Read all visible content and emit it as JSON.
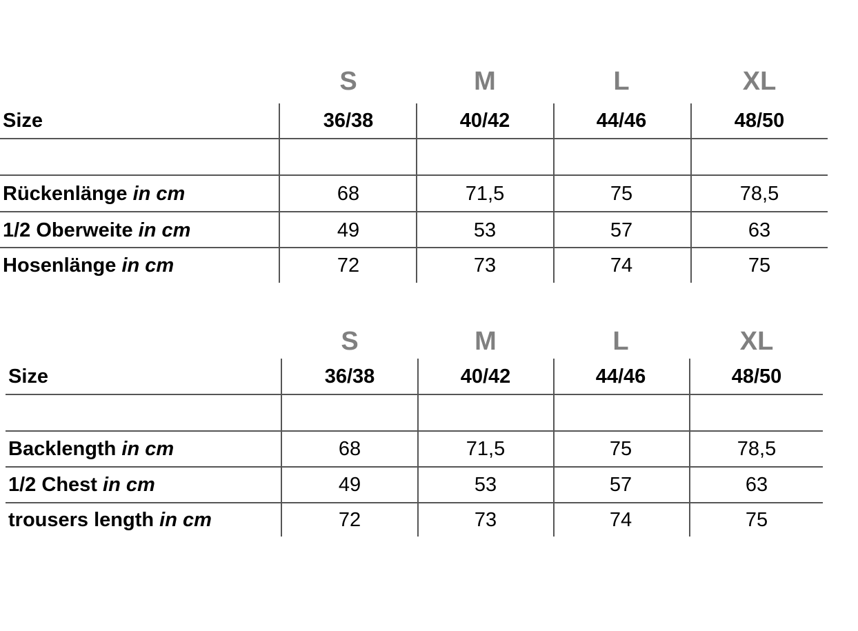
{
  "tables": [
    {
      "size_letters": [
        "S",
        "M",
        "L",
        "XL"
      ],
      "header_label": "Size",
      "sizes": [
        "36/38",
        "40/42",
        "44/46",
        "48/50"
      ],
      "rows": [
        {
          "label": "Rückenlänge",
          "unit": "in cm",
          "values": [
            "68",
            "71,5",
            "75",
            "78,5"
          ]
        },
        {
          "label": "1/2 Oberweite",
          "unit": "in cm",
          "values": [
            "49",
            "53",
            "57",
            "63"
          ]
        },
        {
          "label": "Hosenlänge",
          "unit": "in cm",
          "values": [
            "72",
            "73",
            "74",
            "75"
          ]
        }
      ]
    },
    {
      "size_letters": [
        "S",
        "M",
        "L",
        "XL"
      ],
      "header_label": "Size",
      "sizes": [
        "36/38",
        "40/42",
        "44/46",
        "48/50"
      ],
      "rows": [
        {
          "label": "Backlength",
          "unit": "in cm",
          "values": [
            "68",
            "71,5",
            "75",
            "78,5"
          ]
        },
        {
          "label": "1/2 Chest",
          "unit": "in cm",
          "values": [
            "49",
            "53",
            "57",
            "63"
          ]
        },
        {
          "label": "trousers length",
          "unit": "in cm",
          "values": [
            "72",
            "73",
            "74",
            "75"
          ]
        }
      ]
    }
  ],
  "colors": {
    "size_letter": "#808080",
    "text": "#000000",
    "grid": "#555555"
  }
}
